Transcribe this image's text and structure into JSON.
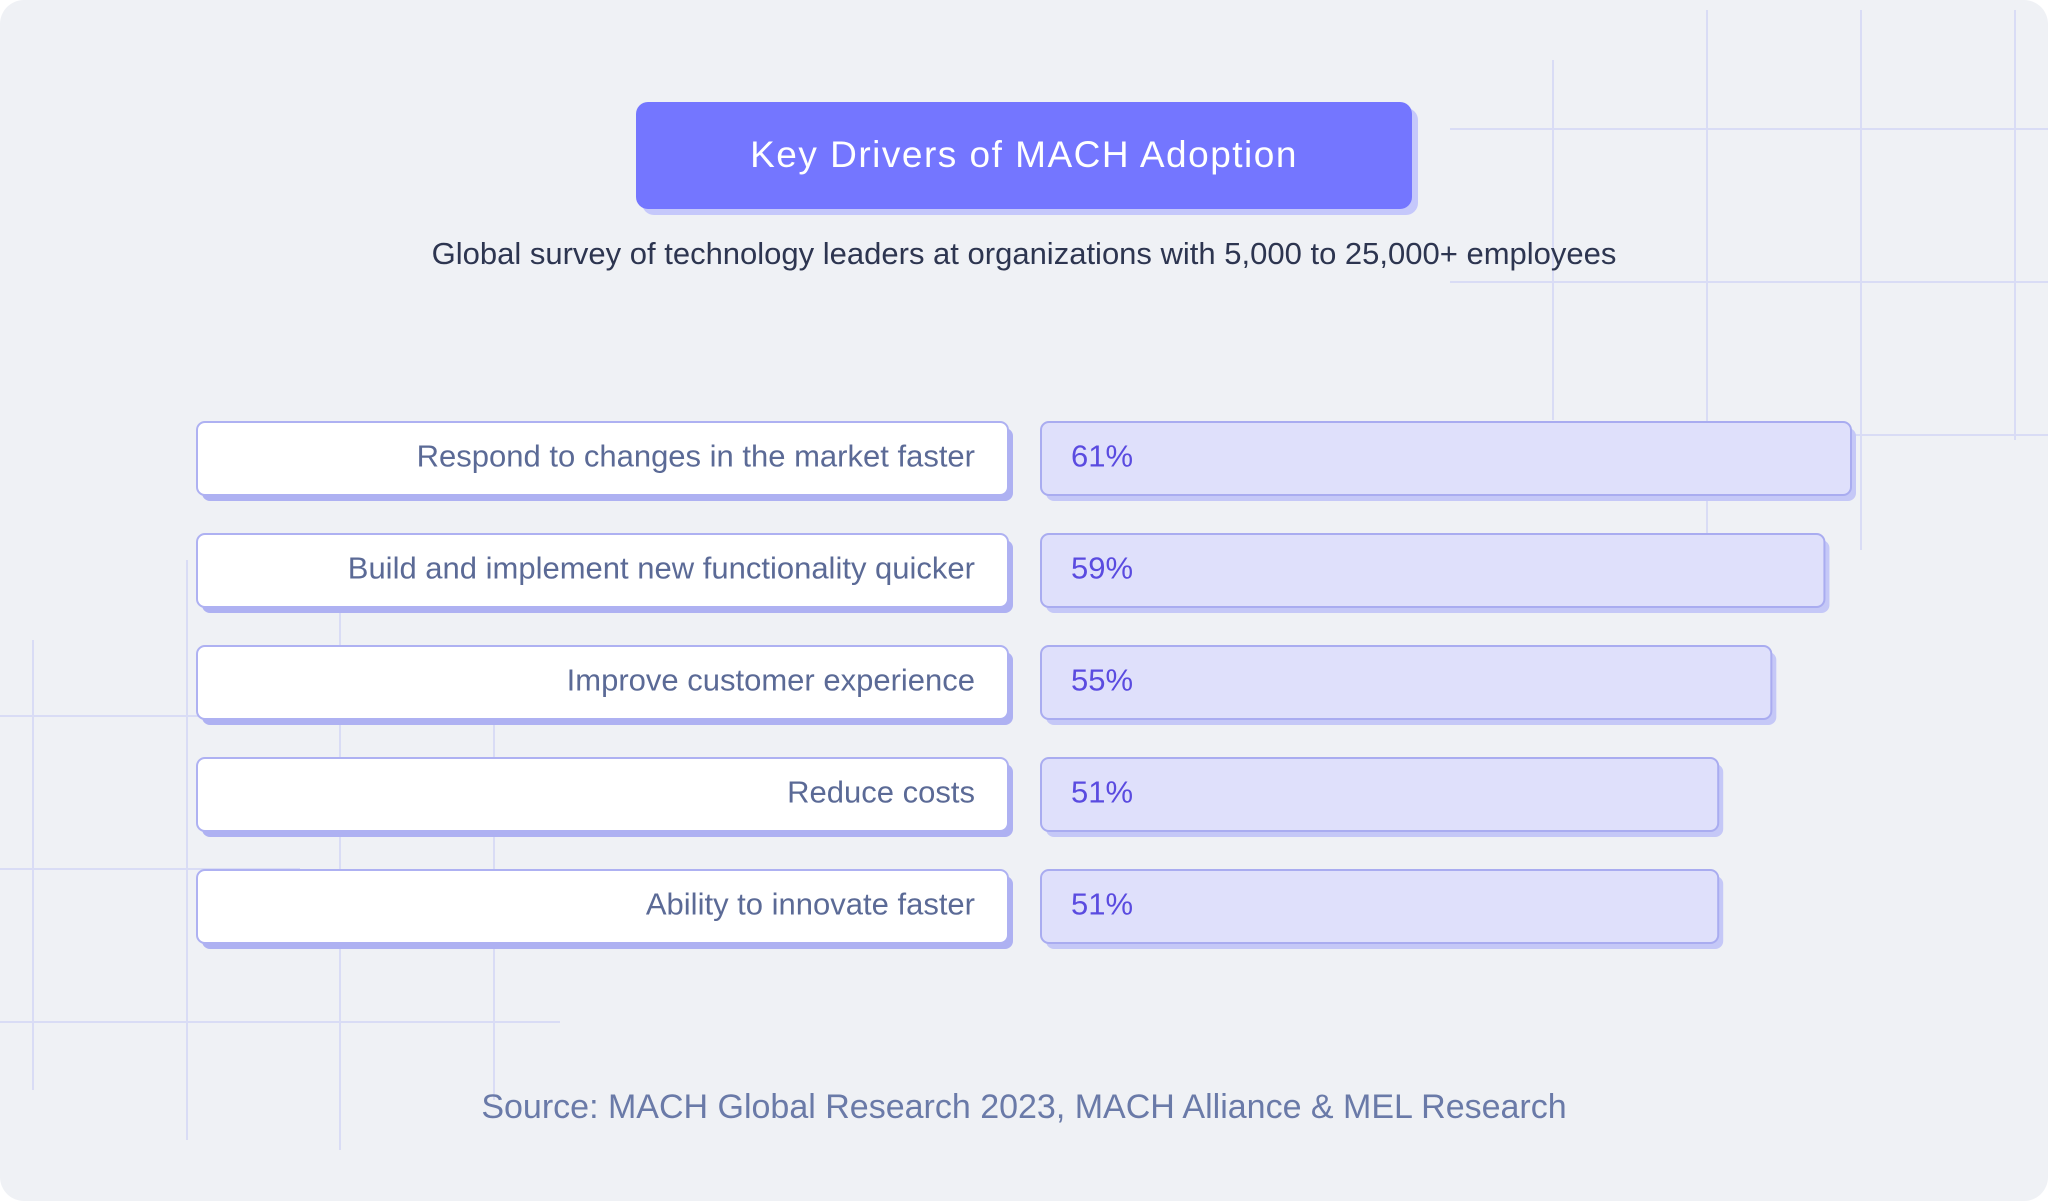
{
  "chart_data": {
    "type": "bar",
    "orientation": "horizontal",
    "title": "Key Drivers of MACH Adoption",
    "subtitle": "Global survey of technology leaders at organizations with 5,000 to 25,000+ employees",
    "categories": [
      "Respond to changes in the market faster",
      "Build and implement new functionality quicker",
      "Improve customer experience",
      "Reduce costs",
      "Ability to innovate faster"
    ],
    "values": [
      61,
      59,
      55,
      51,
      51
    ],
    "value_labels": [
      "61%",
      "59%",
      "55%",
      "51%",
      "51%"
    ],
    "color": "#dfe0fb",
    "source": "Source: MACH Global Research 2023, MACH Alliance & MEL Research"
  }
}
